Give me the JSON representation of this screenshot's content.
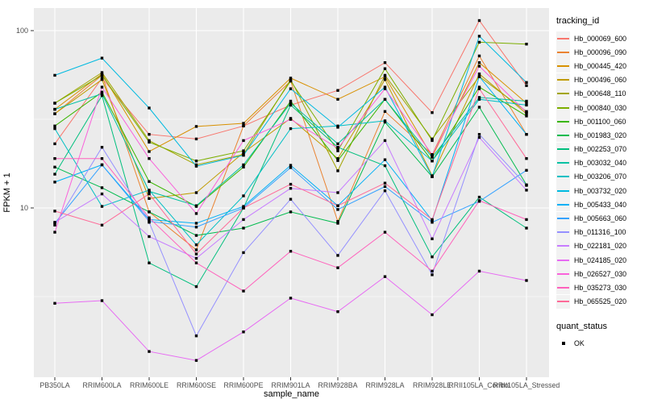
{
  "chart_data": {
    "type": "line",
    "title": "",
    "xlabel": "sample_name",
    "ylabel": "FPKM + 1",
    "y_scale": "log10",
    "y_tick_labels": [
      "10",
      "100"
    ],
    "y_ticks": [
      10,
      100
    ],
    "y_minor_ticks": [
      3.162,
      31.62
    ],
    "ylim": [
      1.1,
      135
    ],
    "grid": "on",
    "legend_position": "right",
    "point_shape": "filled-square",
    "point_color": "#000000",
    "categories": [
      "PB350LA",
      "RRIM600LA",
      "RRIM600LE",
      "RRIM600SE",
      "RRIM600PE",
      "RRIM901LA",
      "RRIM928BA",
      "RRIM928LA",
      "RRIM928LE",
      "RRII105LA_Control",
      "RRII105LA_Stressed"
    ],
    "series": [
      {
        "name": "Hb_000069_600",
        "color": "#F8766D",
        "values": [
          23,
          54,
          26,
          24.5,
          29,
          38,
          46,
          66,
          34.5,
          114,
          49
        ]
      },
      {
        "name": "Hb_000096_090",
        "color": "#EA8331",
        "values": [
          34,
          56,
          9.5,
          5.8,
          29,
          52,
          8.4,
          35,
          20,
          72,
          26
        ]
      },
      {
        "name": "Hb_000445_420",
        "color": "#D89000",
        "values": [
          36,
          57,
          20.8,
          28.8,
          30,
          54,
          41,
          55,
          19.5,
          66,
          39
        ]
      },
      {
        "name": "Hb_000496_060",
        "color": "#C09B00",
        "values": [
          34,
          53,
          11.3,
          12.2,
          20.5,
          32,
          19,
          53,
          15.2,
          57,
          34
        ]
      },
      {
        "name": "Hb_000648_110",
        "color": "#A3A500",
        "values": [
          39,
          58,
          24,
          17.5,
          20,
          53,
          16.2,
          56,
          24.5,
          55,
          35
        ]
      },
      {
        "name": "Hb_000840_030",
        "color": "#7CAE00",
        "values": [
          39,
          56,
          23.5,
          18.4,
          21,
          52,
          21,
          61,
          24,
          86,
          84
        ]
      },
      {
        "name": "Hb_001100_060",
        "color": "#39B600",
        "values": [
          29,
          45,
          14.1,
          10.2,
          17,
          40,
          18.5,
          41,
          18.4,
          48,
          33
        ]
      },
      {
        "name": "Hb_001983_020",
        "color": "#00BB4E",
        "values": [
          17,
          13,
          9.5,
          7,
          7.7,
          9.5,
          8.2,
          30.5,
          15,
          37,
          13.5
        ]
      },
      {
        "name": "Hb_002253_070",
        "color": "#00BF7D",
        "values": [
          15.5,
          43,
          4.9,
          3.6,
          10,
          38,
          22,
          17.3,
          5.3,
          11.5,
          7.7
        ]
      },
      {
        "name": "Hb_003032_040",
        "color": "#00C1A3",
        "values": [
          36,
          44,
          12.4,
          10.3,
          17.5,
          39,
          23,
          41,
          19.3,
          42,
          40
        ]
      },
      {
        "name": "Hb_003206_070",
        "color": "#00BFC4",
        "values": [
          28,
          10.2,
          12.6,
          6.2,
          11.7,
          28,
          29,
          31,
          18.4,
          41,
          38
        ]
      },
      {
        "name": "Hb_003732_020",
        "color": "#00BAE0",
        "values": [
          56,
          70,
          36.6,
          17.2,
          19.8,
          47,
          28.5,
          48,
          15,
          93,
          51
        ]
      },
      {
        "name": "Hb_005433_040",
        "color": "#00B0F6",
        "values": [
          14,
          17.5,
          8.6,
          8.2,
          10.2,
          17.4,
          10.3,
          18.7,
          8.5,
          55,
          26
        ]
      },
      {
        "name": "Hb_005663_060",
        "color": "#35A2FF",
        "values": [
          8.2,
          17.5,
          8.4,
          7.8,
          10,
          16.9,
          9.8,
          13.2,
          8.3,
          10.9,
          16.3
        ]
      },
      {
        "name": "Hb_011316_100",
        "color": "#9590FF",
        "values": [
          8.0,
          22,
          8.3,
          1.9,
          5.6,
          11.2,
          5.4,
          12.5,
          4.2,
          26,
          13.4
        ]
      },
      {
        "name": "Hb_022181_020",
        "color": "#C77CFF",
        "values": [
          8.3,
          12,
          6.9,
          5.2,
          8.6,
          12.9,
          12.2,
          24,
          6.7,
          25,
          12.6
        ]
      },
      {
        "name": "Hb_024185_020",
        "color": "#E76BF3",
        "values": [
          2.9,
          3.0,
          1.55,
          1.38,
          2.0,
          3.1,
          2.6,
          4.1,
          2.5,
          4.4,
          3.9
        ]
      },
      {
        "name": "Hb_026527_030",
        "color": "#FA62DB",
        "values": [
          7.3,
          48,
          19,
          9.3,
          24,
          31.6,
          21.7,
          47,
          20,
          63,
          34.6
        ]
      },
      {
        "name": "Hb_035273_030",
        "color": "#FF62BC",
        "values": [
          19,
          19,
          8.8,
          4.9,
          3.4,
          5.7,
          4.6,
          7.3,
          4.4,
          11,
          8.6
        ]
      },
      {
        "name": "Hb_065525_020",
        "color": "#FF6A98",
        "values": [
          9.6,
          8,
          12,
          5.5,
          10,
          13.6,
          10.3,
          13.8,
          8.6,
          47,
          19
        ]
      }
    ]
  },
  "legend": {
    "tracking_title": "tracking_id",
    "quant_title": "quant_status",
    "quant_items": [
      "OK"
    ]
  },
  "theme": {
    "panel_bg": "#EBEBEB",
    "grid_color": "#FFFFFF",
    "tick_color": "#333333",
    "tick_label_color": "#4D4D4D",
    "axis_title_color": "#000000",
    "legend_key_bg": "#F2F2F2"
  }
}
